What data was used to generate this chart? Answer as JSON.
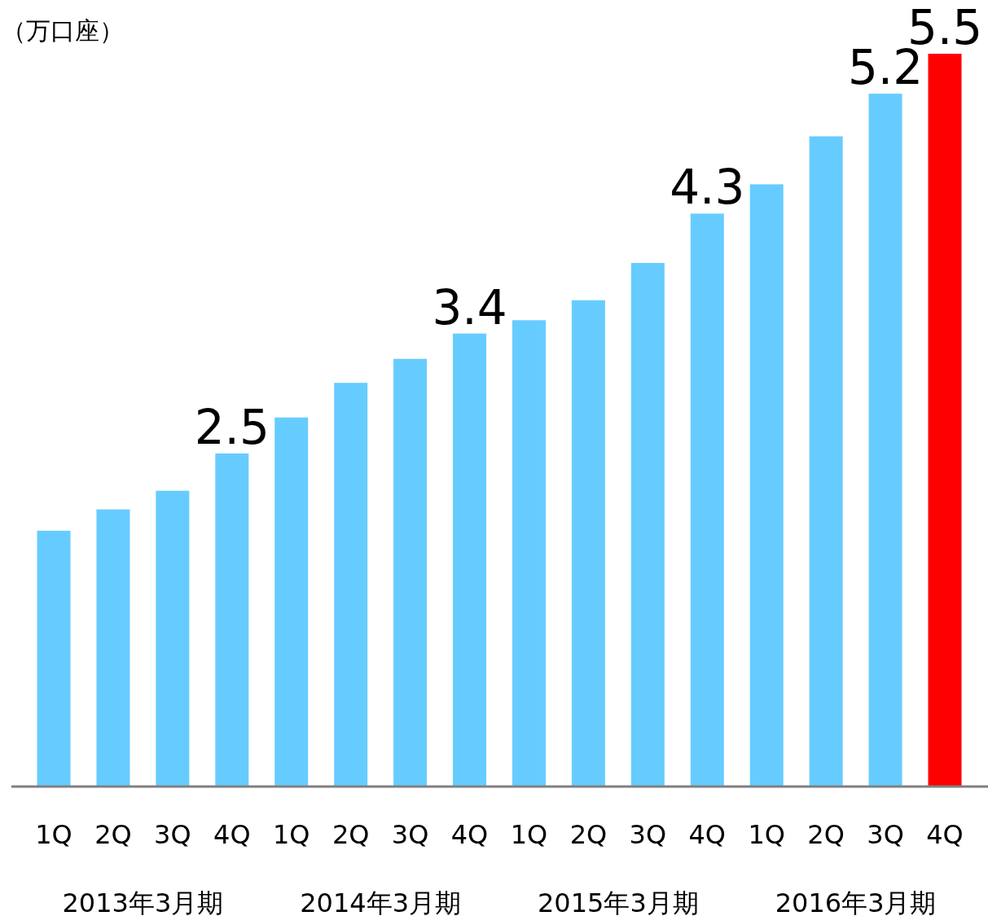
{
  "chart_data": {
    "type": "bar",
    "ylabel": "（万口座）",
    "categories": [
      "1Q",
      "2Q",
      "3Q",
      "4Q",
      "1Q",
      "2Q",
      "3Q",
      "4Q",
      "1Q",
      "2Q",
      "3Q",
      "4Q",
      "1Q",
      "2Q",
      "3Q",
      "4Q"
    ],
    "values": [
      1.92,
      2.08,
      2.22,
      2.5,
      2.77,
      3.03,
      3.21,
      3.4,
      3.5,
      3.65,
      3.93,
      4.3,
      4.52,
      4.88,
      5.2,
      5.5
    ],
    "colors": [
      "#66ccff",
      "#66ccff",
      "#66ccff",
      "#66ccff",
      "#66ccff",
      "#66ccff",
      "#66ccff",
      "#66ccff",
      "#66ccff",
      "#66ccff",
      "#66ccff",
      "#66ccff",
      "#66ccff",
      "#66ccff",
      "#66ccff",
      "#ff0000"
    ],
    "value_labels": [
      null,
      null,
      null,
      "2.5",
      null,
      null,
      null,
      "3.4",
      null,
      null,
      null,
      "4.3",
      null,
      null,
      "5.2",
      "5.5"
    ],
    "annotations": [
      "2013年3月期",
      "2014年3月期",
      "2015年3月期",
      "2016年3月期"
    ]
  }
}
